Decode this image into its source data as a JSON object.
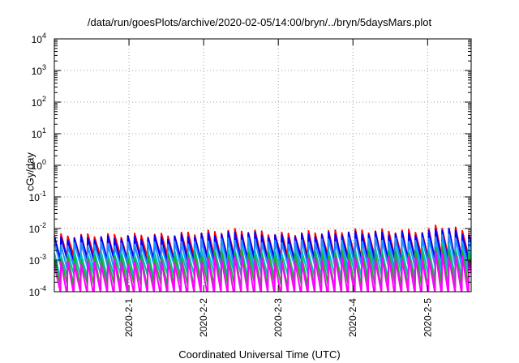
{
  "chart_data": {
    "type": "line",
    "title": "/data/run/goesPlots/archive/2020-02-05/14:00/bryn/../bryn/5daysMars.plot",
    "xlabel": "Coordinated Universal Time (UTC)",
    "ylabel": "cGy/day",
    "yscale": "log",
    "ylim": [
      0.0001,
      10000
    ],
    "y_ticks": [
      {
        "value": 0.0001,
        "base": "10",
        "exp": "-4"
      },
      {
        "value": 0.001,
        "base": "10",
        "exp": "-3"
      },
      {
        "value": 0.01,
        "base": "10",
        "exp": "-2"
      },
      {
        "value": 0.1,
        "base": "10",
        "exp": "-1"
      },
      {
        "value": 1,
        "base": "10",
        "exp": "0"
      },
      {
        "value": 10,
        "base": "10",
        "exp": "1"
      },
      {
        "value": 100,
        "base": "10",
        "exp": "2"
      },
      {
        "value": 1000,
        "base": "10",
        "exp": "3"
      },
      {
        "value": 10000,
        "base": "10",
        "exp": "4"
      }
    ],
    "xlim": [
      "2020-01-31T00:00",
      "2020-02-05T14:00"
    ],
    "x_ticks": [
      {
        "value": "2020-02-01T00:00",
        "label": "2020-2-1"
      },
      {
        "value": "2020-02-02T00:00",
        "label": "2020-2-2"
      },
      {
        "value": "2020-02-03T00:00",
        "label": "2020-2-3"
      },
      {
        "value": "2020-02-04T00:00",
        "label": "2020-2-4"
      },
      {
        "value": "2020-02-05T00:00",
        "label": "2020-2-5"
      }
    ],
    "grid": true,
    "series": [
      {
        "color": "#ff0000",
        "peak": 0.0065,
        "trough": 0.0011
      },
      {
        "color": "#0000ff",
        "peak": 0.0055,
        "trough": 0.0009
      },
      {
        "color": "#1e90ff",
        "peak": 0.0035,
        "trough": 0.0006
      },
      {
        "color": "#00c0c0",
        "peak": 0.0018,
        "trough": 0.0003
      },
      {
        "color": "#22aa22",
        "peak": 0.0013,
        "trough": 0.00015
      },
      {
        "color": "#ff00ff",
        "peak": 0.0009,
        "trough": 8e-05
      }
    ],
    "orbit_period_hours": 2.15,
    "peak_modulation": [
      {
        "x": "2020-01-31T00:00",
        "f": 0.9
      },
      {
        "x": "2020-02-01T12:00",
        "f": 0.95
      },
      {
        "x": "2020-02-02T12:00",
        "f": 1.35
      },
      {
        "x": "2020-02-03T00:00",
        "f": 1.0
      },
      {
        "x": "2020-02-04T00:00",
        "f": 1.3
      },
      {
        "x": "2020-02-05T00:00",
        "f": 1.25
      },
      {
        "x": "2020-02-05T03:00",
        "f": 1.9
      },
      {
        "x": "2020-02-05T14:00",
        "f": 1.1
      }
    ]
  }
}
